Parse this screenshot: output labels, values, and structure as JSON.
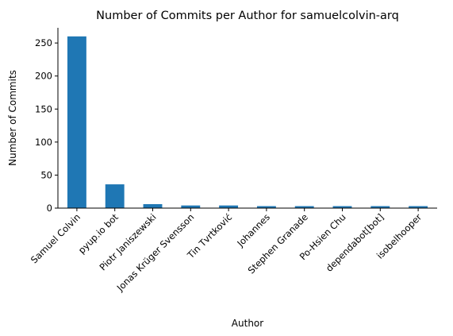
{
  "chart_data": {
    "type": "bar",
    "title": "Number of Commits per Author for samuelcolvin-arq",
    "xlabel": "Author",
    "ylabel": "Number of Commits",
    "categories": [
      "Samuel Colvin",
      "pyup.io bot",
      "Piotr Janiszewski",
      "Jonas Krüger Svensson",
      "Tin Tvrtković",
      "Johannes",
      "Stephen Granade",
      "Po-Hsien Chu",
      "dependabot[bot]",
      "isobelhooper"
    ],
    "values": [
      260,
      36,
      6,
      4,
      4,
      3,
      3,
      3,
      3,
      3
    ],
    "ylim": [
      0,
      273
    ],
    "yticks": [
      0,
      50,
      100,
      150,
      200,
      250
    ],
    "bar_color": "#1f77b4",
    "grid": false,
    "legend": "none"
  }
}
